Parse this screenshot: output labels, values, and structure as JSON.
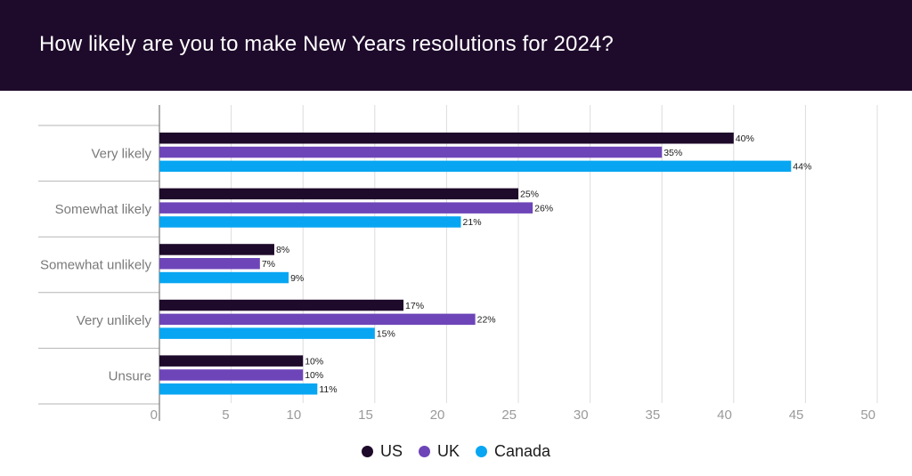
{
  "header": {
    "title": "How likely are you to make New Years resolutions for 2024?"
  },
  "colors": {
    "header_bg": "#1e0a2b",
    "us": "#1e0a2b",
    "uk": "#6e45b8",
    "canada": "#08a6f2"
  },
  "chart_data": {
    "type": "bar",
    "orientation": "horizontal",
    "title": "How likely are you to make New Years resolutions for 2024?",
    "categories": [
      "Very likely",
      "Somewhat likely",
      "Somewhat unlikely",
      "Very unlikely",
      "Unsure"
    ],
    "series": [
      {
        "name": "US",
        "color": "#1e0a2b",
        "values": [
          40,
          25,
          8,
          17,
          10
        ],
        "labels": [
          "40%",
          "25%",
          "8%",
          "17%",
          "10%"
        ]
      },
      {
        "name": "UK",
        "color": "#6e45b8",
        "values": [
          35,
          26,
          7,
          22,
          10
        ],
        "labels": [
          "35%",
          "26%",
          "7%",
          "22%",
          "10%"
        ]
      },
      {
        "name": "Canada",
        "color": "#08a6f2",
        "values": [
          44,
          21,
          9,
          15,
          11
        ],
        "labels": [
          "44%",
          "21%",
          "9%",
          "15%",
          "11%"
        ]
      }
    ],
    "xlim": [
      0,
      50
    ],
    "xticks": [
      "0",
      "5",
      "10",
      "15",
      "20",
      "25",
      "30",
      "35",
      "40",
      "45",
      "50"
    ],
    "grid": true,
    "legend": "bottom-center"
  }
}
